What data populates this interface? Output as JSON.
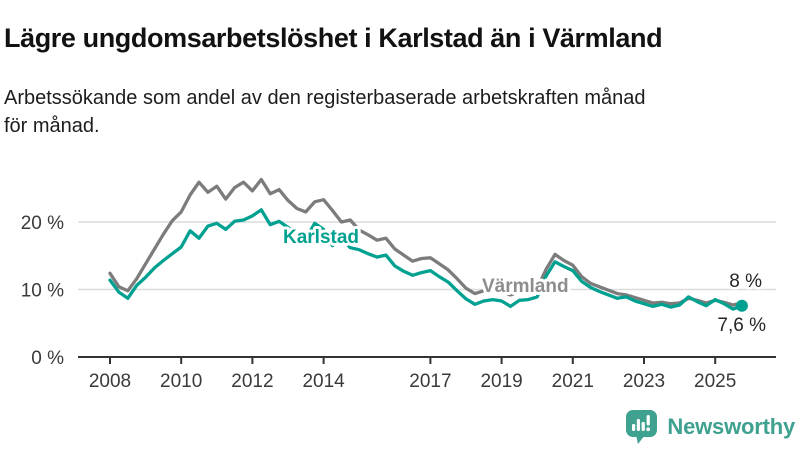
{
  "header": {
    "title": "Lägre ungdomsarbetslöshet i Karlstad än i Värmland",
    "subtitle_line1": "Arbetssökande som andel av den registerbaserade arbetskraften månad",
    "subtitle_line2": "för månad."
  },
  "footer": {
    "brand": "Newsworthy",
    "brand_color": "#3fa18f",
    "logo_icon": "speech-bubble-bar-chart-icon"
  },
  "chart_data": {
    "type": "line",
    "title": "Lägre ungdomsarbetslöshet i Karlstad än i Värmland",
    "subtitle": "Arbetssökande som andel av den registerbaserade arbetskraften månad för månad.",
    "xlabel": "",
    "ylabel": "",
    "x_start": 2008.0,
    "x_step": 0.25,
    "xlim": [
      2007.5,
      2026.5
    ],
    "ylim": [
      0,
      30
    ],
    "grid": "horizontal",
    "x_ticks": [
      2008,
      2010,
      2012,
      2014,
      2017,
      2019,
      2021,
      2023,
      2025
    ],
    "y_ticks": [
      {
        "label": "20 %",
        "value": 20
      },
      {
        "label": "10 %",
        "value": 10
      },
      {
        "label": "0 %",
        "value": 0
      }
    ],
    "legend_position": "inline-labels",
    "series": [
      {
        "id": "varmland",
        "label": "Värmland",
        "color": "#7c7c7c",
        "label_color": "#8d8d8d",
        "end_dot": false,
        "values": [
          12.4,
          10.4,
          9.8,
          11.6,
          13.8,
          16.0,
          18.2,
          20.2,
          21.5,
          24.0,
          25.9,
          24.4,
          25.3,
          23.4,
          25.1,
          25.9,
          24.6,
          26.3,
          24.2,
          24.8,
          23.2,
          22.0,
          21.5,
          23.0,
          23.3,
          21.7,
          20.0,
          20.3,
          18.8,
          18.1,
          17.3,
          17.6,
          16.0,
          15.1,
          14.2,
          14.6,
          14.7,
          13.8,
          12.9,
          11.6,
          10.2,
          9.4,
          9.8,
          10.0,
          9.7,
          9.2,
          9.7,
          9.9,
          10.2,
          13.0,
          15.2,
          14.3,
          13.6,
          11.9,
          10.9,
          10.4,
          9.9,
          9.4,
          9.2,
          8.8,
          8.4,
          8.0,
          8.1,
          7.9,
          8.0,
          8.7,
          8.4,
          8.0,
          8.4,
          8.1,
          7.7,
          8.0
        ]
      },
      {
        "id": "karlstad",
        "label": "Karlstad",
        "color": "#00a190",
        "label_color": "#00a190",
        "end_dot": true,
        "values": [
          11.4,
          9.6,
          8.7,
          10.6,
          11.8,
          13.2,
          14.3,
          15.3,
          16.3,
          18.7,
          17.6,
          19.4,
          19.8,
          18.9,
          20.1,
          20.3,
          20.9,
          21.8,
          19.6,
          20.1,
          19.2,
          18.3,
          17.5,
          19.8,
          18.9,
          16.5,
          17.6,
          16.2,
          15.9,
          15.3,
          14.8,
          15.1,
          13.5,
          12.7,
          12.1,
          12.5,
          12.8,
          11.9,
          11.1,
          9.8,
          8.6,
          7.8,
          8.3,
          8.5,
          8.3,
          7.5,
          8.4,
          8.5,
          8.9,
          12.0,
          14.1,
          13.4,
          12.8,
          11.2,
          10.3,
          9.7,
          9.2,
          8.7,
          8.9,
          8.3,
          7.9,
          7.5,
          7.8,
          7.4,
          7.7,
          8.9,
          8.2,
          7.6,
          8.5,
          7.9,
          7.1,
          7.6
        ]
      }
    ],
    "annotations": [
      {
        "series": "varmland",
        "text": "8 %"
      },
      {
        "series": "karlstad",
        "text": "7,6 %"
      }
    ]
  }
}
